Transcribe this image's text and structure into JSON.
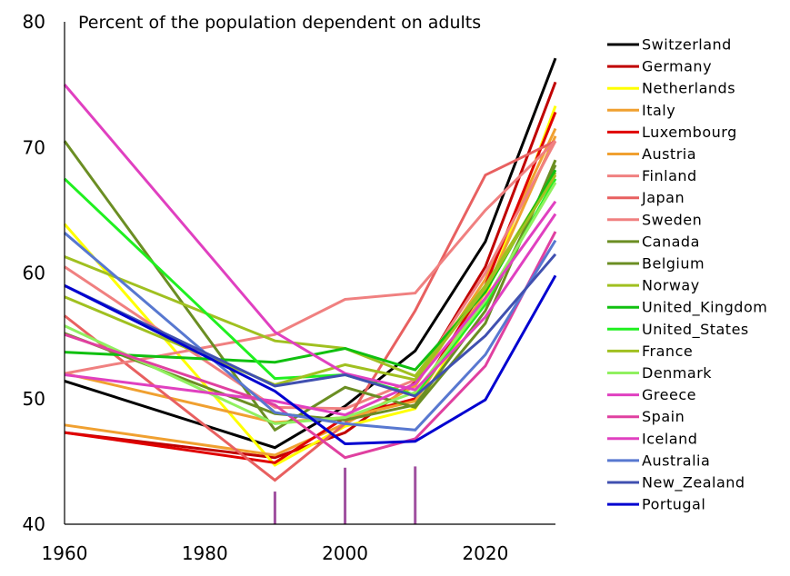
{
  "chart_data": {
    "type": "line",
    "title": "Percent of the population dependent on adults",
    "xlabel": "",
    "ylabel": "",
    "xlim": [
      1960,
      2030
    ],
    "ylim": [
      40,
      80
    ],
    "x_ticks": [
      "1960",
      "1980",
      "2000",
      "2020"
    ],
    "x_tick_values": [
      1960,
      1980,
      2000,
      2020
    ],
    "y_ticks": [
      "40",
      "50",
      "60",
      "70",
      "80"
    ],
    "y_tick_values": [
      40,
      50,
      60,
      70,
      80
    ],
    "grid": false,
    "legend_position": "right",
    "x": [
      1960,
      1990,
      2000,
      2010,
      2020,
      2030
    ],
    "series": [
      {
        "name": "Switzerland",
        "color": "#000000",
        "values": [
          51.4,
          46.1,
          49.4,
          53.8,
          62.5,
          77.1
        ]
      },
      {
        "name": "Germany",
        "color": "#c00000",
        "values": [
          47.3,
          45.3,
          47.3,
          51.3,
          60.5,
          75.2
        ]
      },
      {
        "name": "Netherlands",
        "color": "#ffff00",
        "values": [
          63.9,
          44.7,
          47.8,
          49.2,
          58.0,
          73.3
        ]
      },
      {
        "name": "Italy",
        "color": "#f0a030",
        "values": [
          47.9,
          45.5,
          48.0,
          51.0,
          59.5,
          71.5
        ]
      },
      {
        "name": "Luxembourg",
        "color": "#e00000",
        "values": [
          47.3,
          44.9,
          48.5,
          50.0,
          59.0,
          72.8
        ]
      },
      {
        "name": "Austria",
        "color": "#f0a030",
        "values": [
          52.0,
          48.1,
          48.5,
          49.8,
          58.5,
          70.9
        ]
      },
      {
        "name": "Finland",
        "color": "#f08080",
        "values": [
          60.5,
          49.3,
          49.2,
          51.5,
          60.0,
          70.5
        ]
      },
      {
        "name": "Japan",
        "color": "#e86060",
        "values": [
          56.6,
          43.5,
          48.0,
          57.0,
          67.8,
          70.5
        ]
      },
      {
        "name": "Sweden",
        "color": "#f08080",
        "values": [
          52.0,
          55.1,
          57.9,
          58.4,
          65.0,
          70.5
        ]
      },
      {
        "name": "Canada",
        "color": "#6b8e23",
        "values": [
          70.5,
          47.5,
          50.9,
          49.3,
          56.0,
          69.0
        ]
      },
      {
        "name": "Belgium",
        "color": "#6b8e23",
        "values": [
          55.2,
          48.8,
          48.3,
          49.5,
          57.0,
          68.6
        ]
      },
      {
        "name": "Norway",
        "color": "#a0c020",
        "values": [
          61.3,
          54.6,
          54.0,
          51.8,
          59.0,
          68.0
        ]
      },
      {
        "name": "United_Kingdom",
        "color": "#10c010",
        "values": [
          53.7,
          52.9,
          54.0,
          52.3,
          58.5,
          68.2
        ]
      },
      {
        "name": "United_States",
        "color": "#20f020",
        "values": [
          67.5,
          51.6,
          51.9,
          50.3,
          57.5,
          67.5
        ]
      },
      {
        "name": "France",
        "color": "#a0c020",
        "values": [
          58.1,
          51.1,
          52.7,
          51.5,
          58.8,
          67.8
        ]
      },
      {
        "name": "Denmark",
        "color": "#90f060",
        "values": [
          55.8,
          48.0,
          48.5,
          50.5,
          57.8,
          67.2
        ]
      },
      {
        "name": "Greece",
        "color": "#e040c0",
        "values": [
          51.9,
          49.8,
          48.7,
          51.2,
          58.0,
          65.7
        ]
      },
      {
        "name": "Spain",
        "color": "#e040a0",
        "values": [
          55.1,
          49.5,
          45.3,
          46.8,
          52.6,
          63.3
        ]
      },
      {
        "name": "Iceland",
        "color": "#e040c0",
        "values": [
          75.0,
          55.3,
          52.0,
          50.7,
          56.5,
          64.7
        ]
      },
      {
        "name": "Australia",
        "color": "#5878d0",
        "values": [
          63.2,
          48.9,
          48.0,
          47.5,
          53.5,
          62.6
        ]
      },
      {
        "name": "New_Zealand",
        "color": "#4050b0",
        "values": [
          59.0,
          51.0,
          51.9,
          50.2,
          55.0,
          61.5
        ]
      },
      {
        "name": "Portugal",
        "color": "#0000d0",
        "values": [
          59.0,
          50.6,
          46.4,
          46.6,
          49.9,
          59.8
        ]
      }
    ],
    "annotations": [
      {
        "type": "vertical-marker",
        "x": 1990,
        "from": 40,
        "to": 42.6,
        "color": "#a050a0"
      },
      {
        "type": "vertical-marker",
        "x": 2000,
        "from": 40,
        "to": 44.5,
        "color": "#a050a0"
      },
      {
        "type": "vertical-marker",
        "x": 2010,
        "from": 40,
        "to": 44.6,
        "color": "#a050a0"
      }
    ]
  }
}
